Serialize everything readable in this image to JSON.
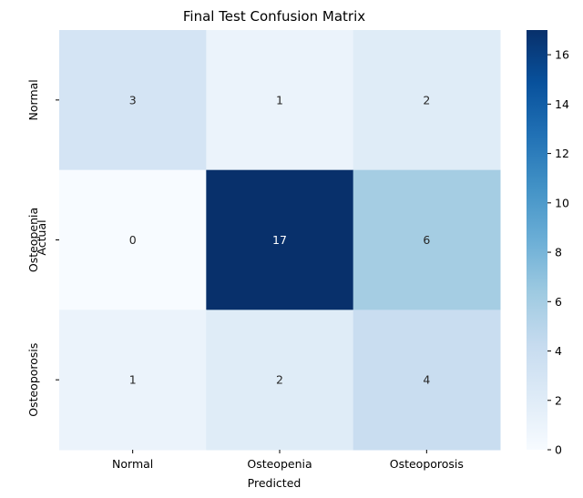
{
  "chart_data": {
    "type": "heatmap",
    "title": "Final Test Confusion Matrix",
    "xlabel": "Predicted",
    "ylabel": "Actual",
    "x_categories": [
      "Normal",
      "Osteopenia",
      "Osteoporosis"
    ],
    "y_categories": [
      "Normal",
      "Osteopenia",
      "Osteoporosis"
    ],
    "values": [
      [
        3,
        1,
        2
      ],
      [
        0,
        17,
        6
      ],
      [
        1,
        2,
        4
      ]
    ],
    "colorbar": {
      "range": [
        0,
        17
      ],
      "ticks": [
        "0",
        "2",
        "4",
        "6",
        "8",
        "10",
        "12",
        "14",
        "16"
      ]
    },
    "colormap": "Blues",
    "colormap_stops": [
      "#f7fbff",
      "#deebf7",
      "#c6dbef",
      "#9ecae1",
      "#6baed6",
      "#4292c6",
      "#2171b5",
      "#08519c",
      "#08306b"
    ]
  }
}
